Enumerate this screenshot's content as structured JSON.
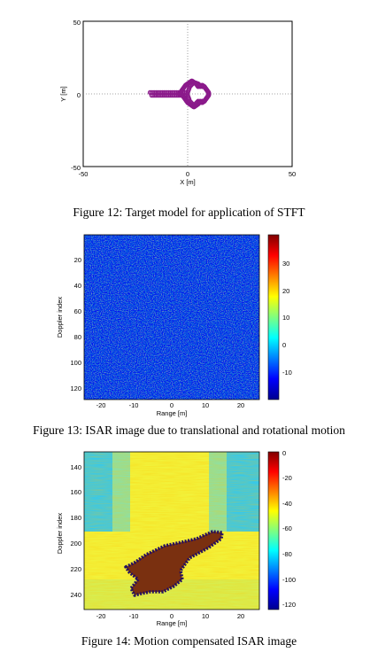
{
  "figures": [
    {
      "caption": "Figure 12: Target model for application of STFT",
      "chart_data": {
        "type": "scatter",
        "xlabel": "X [m]",
        "ylabel": "Y [m]",
        "xlim": [
          -50,
          50
        ],
        "ylim": [
          -50,
          50
        ],
        "xticks": [
          "-50",
          "0",
          "50"
        ],
        "yticks": [
          "50",
          "0",
          "-50"
        ],
        "grid": "dotted axes through origin",
        "series_color": "#8b1a8b",
        "points_x": [
          -18,
          -15,
          -12,
          -9,
          -6,
          -3,
          0,
          1,
          3,
          5,
          6,
          7,
          8,
          9,
          10,
          10,
          9,
          8,
          7,
          6,
          5,
          4,
          3,
          2,
          1,
          0,
          -1,
          -2,
          -3,
          -4,
          -3,
          -2,
          -1,
          0,
          1,
          2,
          3,
          4,
          5,
          6,
          7,
          8,
          9,
          10,
          10,
          9,
          8,
          7,
          6,
          5,
          3,
          1,
          0,
          -3,
          -6,
          -9,
          -12,
          -15,
          -18
        ],
        "points_y": [
          1,
          1,
          1,
          1,
          1,
          1,
          1,
          5,
          8,
          7,
          5,
          6,
          5,
          3,
          1,
          -1,
          -3,
          -5,
          -6,
          -5,
          -7,
          -8,
          -9,
          -8,
          -7,
          -6,
          -4,
          -2,
          0,
          0,
          2,
          4,
          6,
          7,
          8,
          9,
          8,
          7,
          5,
          6,
          5,
          5,
          3,
          1,
          -1,
          -3,
          -5,
          -5,
          -6,
          -5,
          -8,
          -5,
          -1,
          -1,
          -1,
          -1,
          -1,
          -1,
          -1
        ]
      }
    },
    {
      "caption": "Figure 13: ISAR image due to translational and rotational motion",
      "chart_data": {
        "type": "heatmap",
        "xlabel": "Range [m]",
        "ylabel": "Doppler index",
        "xticks": [
          "-20",
          "-10",
          "0",
          "10",
          "20"
        ],
        "yticks": [
          "20",
          "40",
          "60",
          "80",
          "100",
          "120"
        ],
        "colorbar_ticks": [
          "30",
          "20",
          "10",
          "0",
          "-10"
        ],
        "content": "speckle noise, no visible target"
      }
    },
    {
      "caption": "Figure 14: Motion compensated ISAR image",
      "chart_data": {
        "type": "heatmap",
        "xlabel": "Range [m]",
        "ylabel": "Doppler index",
        "xticks": [
          "-20",
          "-10",
          "0",
          "10",
          "20"
        ],
        "yticks": [
          "140",
          "160",
          "180",
          "200",
          "220",
          "240"
        ],
        "colorbar_ticks": [
          "0",
          "-20",
          "-40",
          "-60",
          "-80",
          "-100",
          "-120"
        ],
        "content": "focused aircraft silhouette outlined in dark red/blue"
      }
    }
  ]
}
